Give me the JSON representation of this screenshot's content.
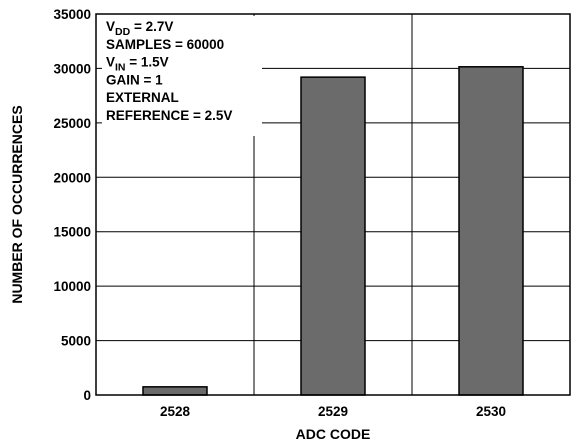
{
  "chart_data": {
    "type": "bar",
    "title": "",
    "xlabel": "ADC CODE",
    "ylabel": "NUMBER OF OCCURRENCES",
    "categories": [
      "2528",
      "2529",
      "2530"
    ],
    "values": [
      750,
      29200,
      30150
    ],
    "ylim": [
      0,
      35000
    ],
    "yticks": [
      0,
      5000,
      10000,
      15000,
      20000,
      25000,
      30000,
      35000
    ],
    "grid": true,
    "bar_color": "#6b6b6b",
    "annotation": {
      "lines": [
        {
          "text": "V",
          "sub": "DD",
          "rest": " = 2.7V"
        },
        {
          "text": "SAMPLES = 60000",
          "sub": "",
          "rest": ""
        },
        {
          "text": "V",
          "sub": "IN",
          "rest": " = 1.5V"
        },
        {
          "text": "GAIN = 1",
          "sub": "",
          "rest": ""
        },
        {
          "text": "EXTERNAL",
          "sub": "",
          "rest": ""
        },
        {
          "text": "REFERENCE = 2.5V",
          "sub": "",
          "rest": ""
        }
      ]
    }
  }
}
